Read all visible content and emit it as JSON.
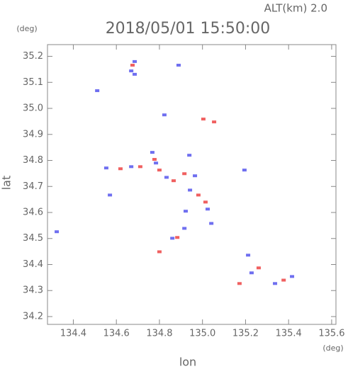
{
  "chart_data": {
    "type": "scatter",
    "title": "2018/05/01 15:50:00",
    "subtitle": "ALT(km) 2.0",
    "y_unit": "(deg)",
    "x_unit": "(deg)",
    "x_label": "lon",
    "y_label": "lat",
    "xlim": [
      134.28,
      135.62
    ],
    "ylim": [
      34.17,
      35.245
    ],
    "xticks": [
      134.4,
      134.6,
      134.8,
      {
        "value": 135,
        "label": "135.0"
      },
      135.2,
      135.4,
      135.6
    ],
    "yticks": [
      34.2,
      34.3,
      34.4,
      34.5,
      34.6,
      34.7,
      34.8,
      34.9,
      {
        "value": 35,
        "label": "35.0"
      },
      35.1,
      35.2
    ],
    "series": [
      {
        "color": "#6f6ff0",
        "x": [
          134.323,
          134.511,
          134.669,
          134.685,
          134.889,
          134.823,
          134.939,
          134.767,
          134.553,
          134.669,
          134.833,
          134.965,
          135.024,
          134.916,
          135.041,
          135.195,
          135.212,
          135.228,
          135.337,
          135.416,
          134.57,
          134.942,
          134.86,
          134.922,
          134.784,
          134.685
        ],
        "values": [
          34.526,
          35.068,
          35.144,
          35.18,
          35.166,
          34.975,
          34.82,
          34.831,
          34.771,
          34.776,
          34.735,
          34.741,
          34.613,
          34.539,
          34.558,
          34.763,
          34.436,
          34.368,
          34.327,
          34.354,
          34.667,
          34.686,
          34.501,
          34.605,
          34.79,
          35.131
        ]
      },
      {
        "color": "#f06060",
        "x": [
          134.675,
          135.004,
          135.054,
          134.777,
          134.619,
          134.8,
          134.916,
          134.981,
          135.014,
          134.883,
          134.8,
          135.172,
          135.261,
          135.377,
          134.866,
          134.711
        ],
        "values": [
          35.166,
          34.959,
          34.948,
          34.804,
          34.768,
          34.763,
          34.749,
          34.667,
          34.64,
          34.504,
          34.449,
          34.327,
          34.387,
          34.34,
          34.722,
          34.776
        ]
      }
    ]
  }
}
